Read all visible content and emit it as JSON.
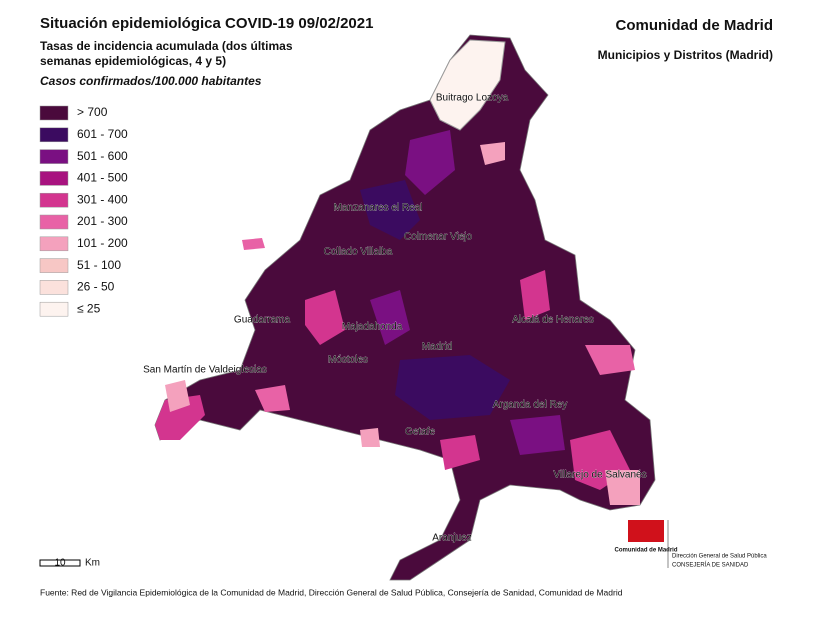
{
  "header": {
    "title": "Situación epidemiológica COVID-19  09/02/2021",
    "subtitle": [
      "Tasas de incidencia acumulada (dos últimas",
      "semanas epidemiológicas, 4 y 5)"
    ],
    "units": "Casos confirmados/100.000 habitantes",
    "region": "Comunidad de Madrid",
    "scope": "Municipios y Distritos (Madrid)"
  },
  "legend": {
    "items": [
      {
        "label": "> 700",
        "color": "#4a0a3c"
      },
      {
        "label": "601 - 700",
        "color": "#3b0b60"
      },
      {
        "label": "501 - 600",
        "color": "#7a1082"
      },
      {
        "label": "401 - 500",
        "color": "#a8137f"
      },
      {
        "label": "301 - 400",
        "color": "#d3358f"
      },
      {
        "label": "201 - 300",
        "color": "#e862a6"
      },
      {
        "label": "101 - 200",
        "color": "#f4a1bd"
      },
      {
        "label": "51 - 100",
        "color": "#f7c7c5"
      },
      {
        "label": "26 - 50",
        "color": "#fbe1dc"
      },
      {
        "label": "≤ 25",
        "color": "#fdf3ef"
      }
    ]
  },
  "map": {
    "places": [
      "Buitrago Lozoya",
      "Manzanares el Real",
      "Colmenar Viejo",
      "Collado Villalba",
      "Guadarrama",
      "Majadahonda",
      "Madrid",
      "Alcalá de Henares",
      "San Martín de Valdeiglesias",
      "Móstoles",
      "Getafe",
      "Arganda del Rey",
      "Villarejo de Salvanés",
      "Aranjuez"
    ],
    "scale": {
      "value": "10",
      "unit": "Km"
    }
  },
  "logo": {
    "name": "Comunidad de Madrid",
    "department": "Dirección General de Salud Pública",
    "ministry": "CONSEJERÍA DE SANIDAD"
  },
  "footer": "Fuente: Red de Vigilancia Epidemiológica de la Comunidad de Madrid, Dirección General de Salud Pública, Consejería de Sanidad, Comunidad de Madrid"
}
